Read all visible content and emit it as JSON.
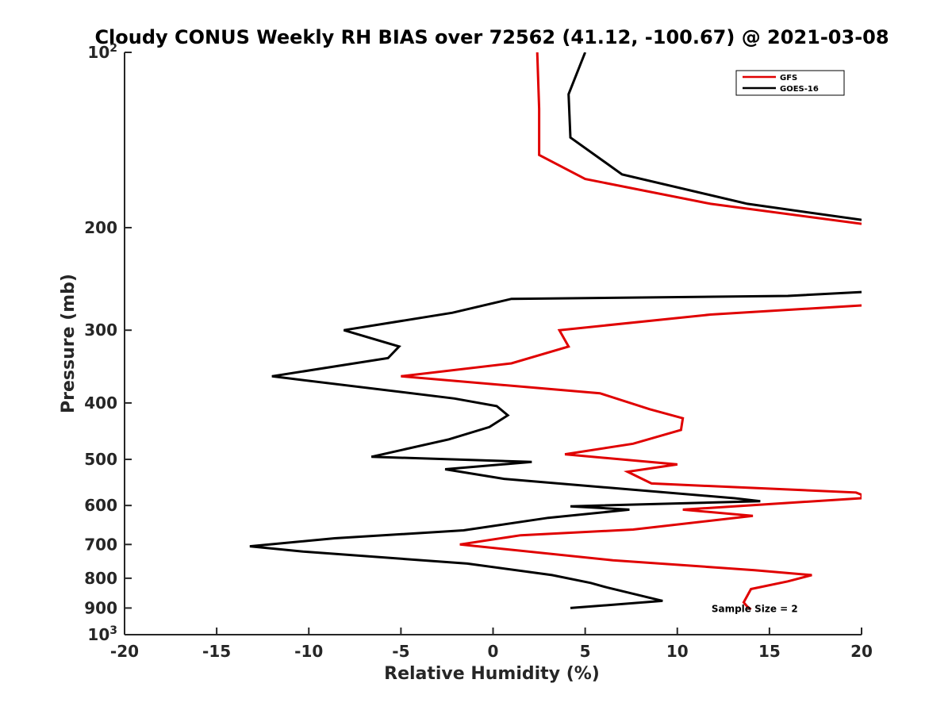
{
  "chart_data": {
    "type": "line",
    "title": "Cloudy CONUS Weekly RH BIAS over 72562 (41.12, -100.67) @ 2021-03-08",
    "xlabel": "Relative Humidity (%)",
    "ylabel": "Pressure (mb)",
    "xlim": [
      -20,
      20
    ],
    "ylim": [
      100,
      1000
    ],
    "y_scale": "log",
    "y_reversed": true,
    "grid": false,
    "legend_position": "top-right",
    "x_ticks": [
      {
        "value": -20,
        "label": "-20"
      },
      {
        "value": -15,
        "label": "-15"
      },
      {
        "value": -10,
        "label": "-10"
      },
      {
        "value": -5,
        "label": "-5"
      },
      {
        "value": 0,
        "label": "0"
      },
      {
        "value": 5,
        "label": "5"
      },
      {
        "value": 10,
        "label": "10"
      },
      {
        "value": 15,
        "label": "15"
      },
      {
        "value": 20,
        "label": "20"
      }
    ],
    "y_ticks": [
      {
        "value": 100,
        "base": "10",
        "exp": "2"
      },
      {
        "value": 200,
        "label": "200"
      },
      {
        "value": 300,
        "label": "300"
      },
      {
        "value": 400,
        "label": "400"
      },
      {
        "value": 500,
        "label": "500"
      },
      {
        "value": 600,
        "label": "600"
      },
      {
        "value": 700,
        "label": "700"
      },
      {
        "value": 800,
        "label": "800"
      },
      {
        "value": 900,
        "label": "900"
      },
      {
        "value": 1000,
        "base": "10",
        "exp": "3"
      }
    ],
    "series": [
      {
        "name": "GFS",
        "color": "#e00000",
        "points": [
          [
            2.4,
            100
          ],
          [
            2.5,
            125
          ],
          [
            2.5,
            150
          ],
          [
            5.0,
            165
          ],
          [
            11.8,
            182
          ],
          [
            20,
            197
          ],
          [
            null,
            null
          ],
          [
            20,
            272
          ],
          [
            11.8,
            282
          ],
          [
            3.6,
            300
          ],
          [
            4.1,
            320
          ],
          [
            1.0,
            342
          ],
          [
            -5.0,
            360
          ],
          [
            5.8,
            385
          ],
          [
            8.5,
            410
          ],
          [
            10.3,
            425
          ],
          [
            10.2,
            445
          ],
          [
            7.6,
            470
          ],
          [
            3.9,
            490
          ],
          [
            10.0,
            510
          ],
          [
            7.3,
            525
          ],
          [
            8.6,
            550
          ],
          [
            19.7,
            570
          ],
          [
            20,
            575
          ],
          [
            20,
            583
          ],
          [
            10.3,
            610
          ],
          [
            14.1,
            625
          ],
          [
            7.6,
            660
          ],
          [
            1.5,
            675
          ],
          [
            -1.8,
            700
          ],
          [
            6.5,
            745
          ],
          [
            14.2,
            775
          ],
          [
            17.3,
            790
          ],
          [
            16.0,
            810
          ],
          [
            14.0,
            835
          ],
          [
            13.6,
            880
          ],
          [
            13.8,
            895
          ],
          [
            14.0,
            905
          ]
        ]
      },
      {
        "name": "GOES-16",
        "color": "#000000",
        "points": [
          [
            5.0,
            100
          ],
          [
            4.1,
            118
          ],
          [
            4.2,
            140
          ],
          [
            7.0,
            162
          ],
          [
            13.8,
            182
          ],
          [
            20,
            194
          ],
          [
            null,
            null
          ],
          [
            20,
            258
          ],
          [
            16.0,
            262
          ],
          [
            1.0,
            265
          ],
          [
            -2.2,
            280
          ],
          [
            -8.1,
            300
          ],
          [
            -5.1,
            320
          ],
          [
            -5.7,
            335
          ],
          [
            -12.0,
            360
          ],
          [
            -2.1,
            393
          ],
          [
            0.2,
            405
          ],
          [
            0.8,
            420
          ],
          [
            -0.2,
            440
          ],
          [
            -2.4,
            462
          ],
          [
            -6.6,
            495
          ],
          [
            2.1,
            505
          ],
          [
            -2.6,
            520
          ],
          [
            0.6,
            540
          ],
          [
            13.1,
            583
          ],
          [
            14.5,
            590
          ],
          [
            4.2,
            602
          ],
          [
            7.4,
            610
          ],
          [
            3.0,
            630
          ],
          [
            -1.6,
            662
          ],
          [
            -8.6,
            683
          ],
          [
            -13.2,
            705
          ],
          [
            -10.3,
            720
          ],
          [
            -1.4,
            755
          ],
          [
            3.2,
            790
          ],
          [
            5.3,
            815
          ],
          [
            6.2,
            830
          ],
          [
            9.2,
            875
          ],
          [
            4.2,
            900
          ]
        ]
      }
    ],
    "annotations": [
      {
        "text": "Sample Size = 2",
        "x": 14.2,
        "y": 900
      }
    ]
  }
}
